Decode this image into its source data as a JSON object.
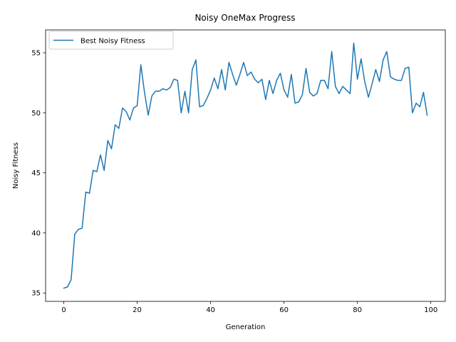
{
  "chart_data": {
    "type": "line",
    "title": "Noisy OneMax Progress",
    "xlabel": "Generation",
    "ylabel": "Noisy Fitness",
    "xlim": [
      -4.95,
      103.95
    ],
    "ylim": [
      34.3,
      56.9
    ],
    "xticks": [
      0,
      20,
      40,
      60,
      80,
      100
    ],
    "yticks": [
      35,
      40,
      45,
      50,
      55
    ],
    "grid": false,
    "legend_position": "upper-left",
    "series": [
      {
        "name": "Best Noisy Fitness",
        "color": "#1f77b4",
        "x": [
          0,
          1,
          2,
          3,
          4,
          5,
          6,
          7,
          8,
          9,
          10,
          11,
          12,
          13,
          14,
          15,
          16,
          17,
          18,
          19,
          20,
          21,
          22,
          23,
          24,
          25,
          26,
          27,
          28,
          29,
          30,
          31,
          32,
          33,
          34,
          35,
          36,
          37,
          38,
          39,
          40,
          41,
          42,
          43,
          44,
          45,
          46,
          47,
          48,
          49,
          50,
          51,
          52,
          53,
          54,
          55,
          56,
          57,
          58,
          59,
          60,
          61,
          62,
          63,
          64,
          65,
          66,
          67,
          68,
          69,
          70,
          71,
          72,
          73,
          74,
          75,
          76,
          77,
          78,
          79,
          80,
          81,
          82,
          83,
          84,
          85,
          86,
          87,
          88,
          89,
          90,
          91,
          92,
          93,
          94,
          95,
          96,
          97,
          98,
          99
        ],
        "y": [
          35.4,
          35.5,
          36.1,
          39.9,
          40.3,
          40.4,
          43.4,
          43.3,
          45.2,
          45.1,
          46.5,
          45.2,
          47.7,
          47.0,
          49.0,
          48.7,
          50.4,
          50.1,
          49.4,
          50.4,
          50.6,
          54.0,
          51.7,
          49.8,
          51.4,
          51.8,
          51.8,
          52.0,
          51.9,
          52.1,
          52.8,
          52.7,
          50.0,
          51.8,
          50.0,
          53.6,
          54.4,
          50.5,
          50.6,
          51.2,
          51.9,
          52.9,
          52.0,
          53.6,
          51.9,
          54.2,
          53.2,
          52.3,
          53.2,
          54.2,
          53.1,
          53.4,
          52.8,
          52.5,
          52.8,
          51.1,
          52.7,
          51.6,
          52.7,
          53.3,
          51.9,
          51.3,
          53.2,
          50.8,
          50.9,
          51.5,
          53.7,
          51.7,
          51.4,
          51.6,
          52.7,
          52.7,
          52.0,
          55.1,
          52.2,
          51.6,
          52.2,
          51.9,
          51.6,
          55.8,
          52.8,
          54.5,
          52.6,
          51.3,
          52.4,
          53.6,
          52.6,
          54.4,
          55.1,
          53.0,
          52.8,
          52.7,
          52.7,
          53.7,
          53.8,
          50.0,
          50.8,
          50.5,
          51.7,
          49.8
        ]
      }
    ]
  }
}
